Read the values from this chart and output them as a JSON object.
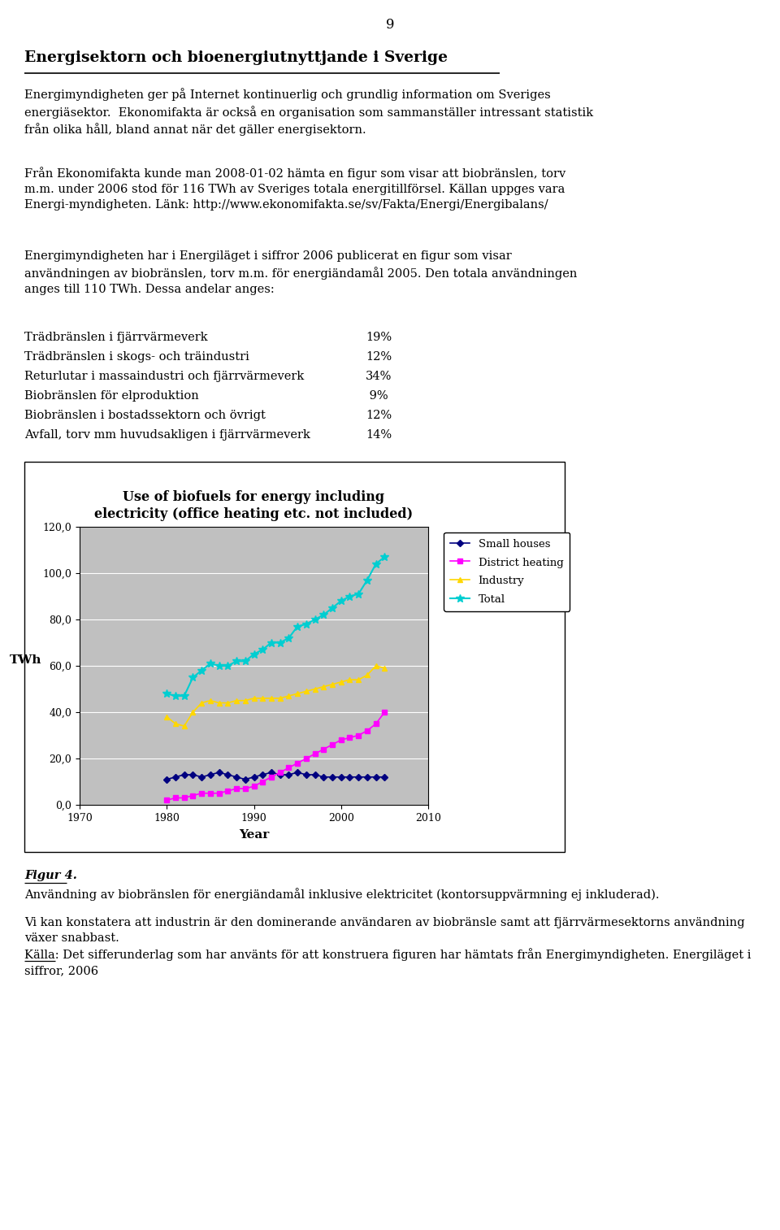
{
  "page_number": "9",
  "heading": "Energisektorn och bioenergiutnyttjande i Sverige",
  "para1": "Energimyndigheten ger på Internet kontinuerlig och grundlig information om Sveriges\nenergiäsektor.  Ekonomifakta är också en organisation som sammanställer intressant statistik\nfrån olika håll, bland annat när det gäller energisektorn.",
  "para2": "Från Ekonomifakta kunde man 2008-01-02 hämta en figur som visar att biobränslen, torv\nm.m. under 2006 stod för 116 TWh av Sveriges totala energitillförsel. Källan uppges vara\nEnergi­myndigheten. Länk: http://www.ekonomifakta.se/sv/Fakta/Energi/Energibalans/",
  "para3": "Energimyndigheten har i Energiläget i siffror 2006 publicerat en figur som visar\nanvändningen av biobränslen, torv m.m. för energiändamål 2005. Den totala användningen\nanges till 110 TWh. Dessa andelar anges:",
  "list_items": [
    [
      "Trädbränslen i fjärrvärmeverk",
      "19%"
    ],
    [
      "Trädbränslen i skogs- och träindustri",
      "12%"
    ],
    [
      "Returlutar i massaindustri och fjärrvärmeverk",
      "34%"
    ],
    [
      "Biobränslen för elproduktion",
      " 9%"
    ],
    [
      "Biobränslen i bostadssektorn och övrigt",
      "12%"
    ],
    [
      "Avfall, torv mm huvudsakligen i fjärrvärmeverk",
      "14%"
    ]
  ],
  "chart_title": "Use of biofuels for energy including\nelectricity (office heating etc. not included)",
  "xlabel": "Year",
  "ylabel": "TWh",
  "xlim": [
    1970,
    2010
  ],
  "ylim": [
    0,
    120
  ],
  "ytick_labels": [
    "0,0",
    "20,0",
    "40,0",
    "60,0",
    "80,0",
    "100,0",
    "120,0"
  ],
  "xtick_labels": [
    "1970",
    "1980",
    "1990",
    "2000",
    "2010"
  ],
  "chart_bg": "#C0C0C0",
  "small_houses_color": "#000080",
  "district_color": "#FF00FF",
  "industry_color": "#FFD700",
  "total_color": "#00CED1",
  "small_houses_years": [
    1980,
    1981,
    1982,
    1983,
    1984,
    1985,
    1986,
    1987,
    1988,
    1989,
    1990,
    1991,
    1992,
    1993,
    1994,
    1995,
    1996,
    1997,
    1998,
    1999,
    2000,
    2001,
    2002,
    2003,
    2004,
    2005
  ],
  "small_houses_vals": [
    11,
    12,
    13,
    13,
    12,
    13,
    14,
    13,
    12,
    11,
    12,
    13,
    14,
    13,
    13,
    14,
    13,
    13,
    12,
    12,
    12,
    12,
    12,
    12,
    12,
    12
  ],
  "district_years": [
    1980,
    1981,
    1982,
    1983,
    1984,
    1985,
    1986,
    1987,
    1988,
    1989,
    1990,
    1991,
    1992,
    1993,
    1994,
    1995,
    1996,
    1997,
    1998,
    1999,
    2000,
    2001,
    2002,
    2003,
    2004,
    2005
  ],
  "district_vals": [
    2,
    3,
    3,
    4,
    5,
    5,
    5,
    6,
    7,
    7,
    8,
    10,
    12,
    14,
    16,
    18,
    20,
    22,
    24,
    26,
    28,
    29,
    30,
    32,
    35,
    40
  ],
  "industry_years": [
    1980,
    1981,
    1982,
    1983,
    1984,
    1985,
    1986,
    1987,
    1988,
    1989,
    1990,
    1991,
    1992,
    1993,
    1994,
    1995,
    1996,
    1997,
    1998,
    1999,
    2000,
    2001,
    2002,
    2003,
    2004,
    2005
  ],
  "industry_vals": [
    38,
    35,
    34,
    40,
    44,
    45,
    44,
    44,
    45,
    45,
    46,
    46,
    46,
    46,
    47,
    48,
    49,
    50,
    51,
    52,
    53,
    54,
    54,
    56,
    60,
    59
  ],
  "total_years": [
    1980,
    1981,
    1982,
    1983,
    1984,
    1985,
    1986,
    1987,
    1988,
    1989,
    1990,
    1991,
    1992,
    1993,
    1994,
    1995,
    1996,
    1997,
    1998,
    1999,
    2000,
    2001,
    2002,
    2003,
    2004,
    2005
  ],
  "total_vals": [
    48,
    47,
    47,
    55,
    58,
    61,
    60,
    60,
    62,
    62,
    65,
    67,
    70,
    70,
    72,
    77,
    78,
    80,
    82,
    85,
    88,
    90,
    91,
    97,
    104,
    107
  ],
  "figur_label": "Figur 4.",
  "figur_text1": "Användning av biobränslen för energiändamål inklusive elektricitet (kontorsuppvärmning ej inkluderad).",
  "figur_text2": "Vi kan konstatera att industrin är den dominerande användaren av biobränsle samt att fjärrvärmesektorns användning växer snabbast.",
  "figur_text3": "Källa: Det sifferunderlag som har använts för att konstruera figuren har hämtats från Energimyndigheten. Energiläget i siffror, 2006"
}
